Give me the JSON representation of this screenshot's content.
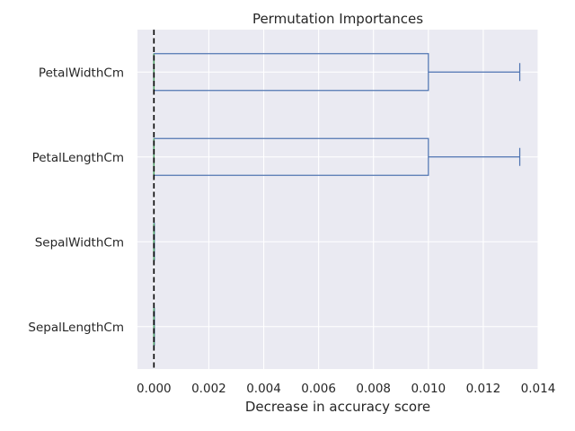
{
  "chart_data": {
    "type": "boxplot",
    "orientation": "horizontal",
    "title": "Permutation Importances",
    "xlabel": "Decrease in accuracy score",
    "ylabel": "",
    "xlim": [
      -0.0006,
      0.014
    ],
    "xticks": [
      0.0,
      0.002,
      0.004,
      0.006,
      0.008,
      0.01,
      0.012,
      0.014
    ],
    "xtick_labels": [
      "0.000",
      "0.002",
      "0.004",
      "0.006",
      "0.008",
      "0.010",
      "0.012",
      "0.014"
    ],
    "grid": true,
    "reference_line": {
      "x": 0.0,
      "style": "dashed",
      "color": "#000000"
    },
    "categories": [
      "PetalWidthCm",
      "PetalLengthCm",
      "SepalWidthCm",
      "SepalLengthCm"
    ],
    "boxes": [
      {
        "label": "PetalWidthCm",
        "whisker_low": 0.0,
        "q1": 0.0,
        "median": 0.0,
        "q3": 0.01,
        "whisker_high": 0.01333
      },
      {
        "label": "PetalLengthCm",
        "whisker_low": 0.0,
        "q1": 0.0,
        "median": 0.0,
        "q3": 0.01,
        "whisker_high": 0.01333
      },
      {
        "label": "SepalWidthCm",
        "whisker_low": 0.0,
        "q1": 0.0,
        "median": 0.0,
        "q3": 0.0,
        "whisker_high": 0.0
      },
      {
        "label": "SepalLengthCm",
        "whisker_low": 0.0,
        "q1": 0.0,
        "median": 0.0,
        "q3": 0.0,
        "whisker_high": 0.0
      }
    ],
    "colors": {
      "box": "#4c72b0",
      "median": "#55a868",
      "background": "#eaeaf2",
      "grid": "#ffffff"
    }
  }
}
